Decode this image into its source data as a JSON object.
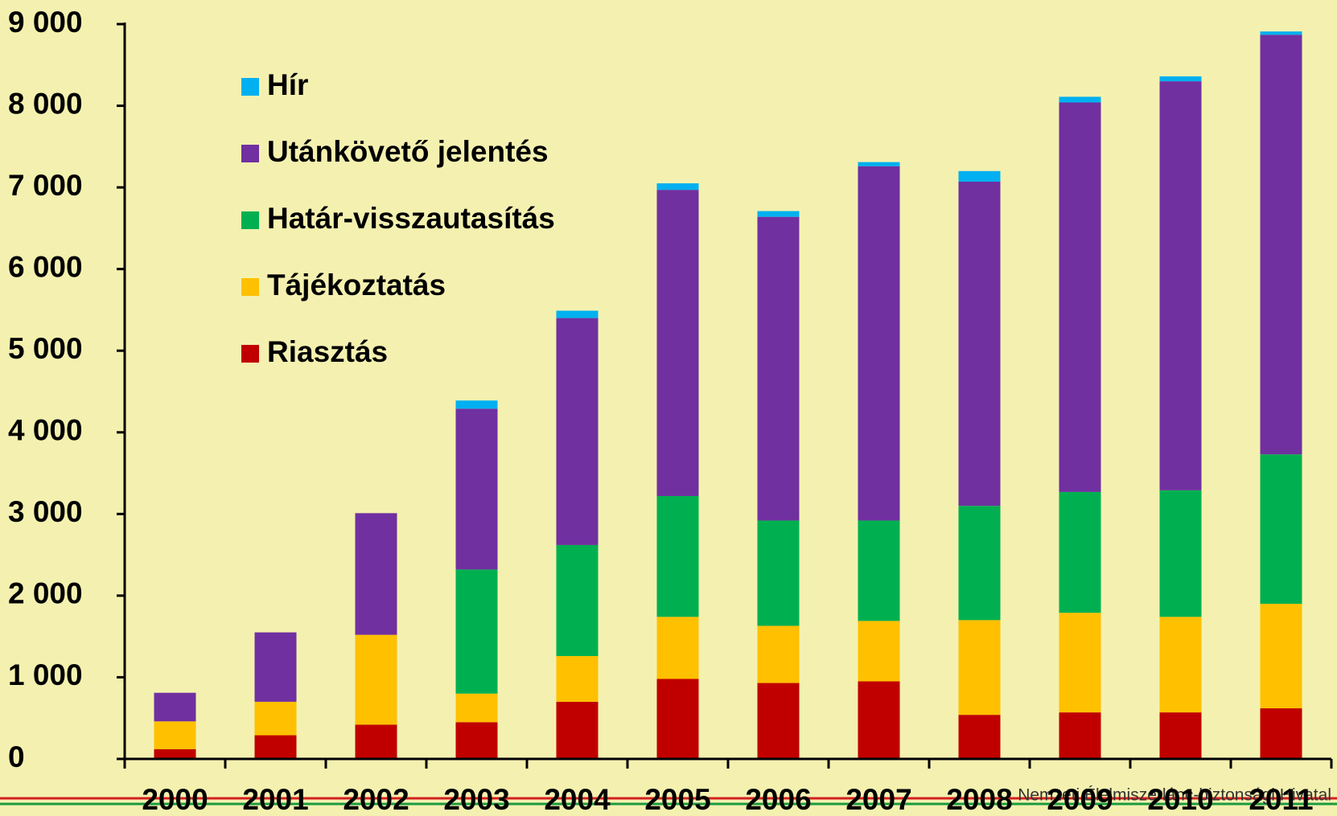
{
  "chart_data": {
    "type": "stacked-bar",
    "categories": [
      "2000",
      "2001",
      "2002",
      "2003",
      "2004",
      "2005",
      "2006",
      "2007",
      "2008",
      "2009",
      "2010",
      "2011"
    ],
    "series": [
      {
        "name": "Riasztás",
        "color": "#c00000",
        "values": [
          120,
          290,
          420,
          450,
          700,
          980,
          930,
          950,
          540,
          570,
          570,
          620
        ]
      },
      {
        "name": "Tájékoztatás",
        "color": "#ffc000",
        "values": [
          340,
          410,
          1100,
          350,
          560,
          760,
          700,
          740,
          1160,
          1220,
          1170,
          1280
        ]
      },
      {
        "name": "Határ-visszautasítás",
        "color": "#00b050",
        "values": [
          0,
          0,
          0,
          1520,
          1360,
          1480,
          1290,
          1230,
          1400,
          1480,
          1550,
          1830
        ]
      },
      {
        "name": "Utánkövető jelentés",
        "color": "#7030a0",
        "values": [
          350,
          850,
          1490,
          1970,
          2780,
          3750,
          3720,
          4340,
          3970,
          4770,
          5010,
          5140
        ]
      },
      {
        "name": "Hír",
        "color": "#00b0f0",
        "values": [
          0,
          0,
          0,
          100,
          90,
          80,
          70,
          50,
          130,
          70,
          60,
          40
        ]
      }
    ],
    "ylim": [
      0,
      9000
    ],
    "yticks": [
      0,
      {
        "value": 1000,
        "label": "1 000"
      },
      {
        "value": 2000,
        "label": "2 000"
      },
      {
        "value": 3000,
        "label": "3 000"
      },
      {
        "value": 4000,
        "label": "4 000"
      },
      {
        "value": 5000,
        "label": "5 000"
      },
      {
        "value": 6000,
        "label": "6 000"
      },
      {
        "value": 7000,
        "label": "7 000"
      },
      {
        "value": 8000,
        "label": "8 000"
      },
      {
        "value": 9000,
        "label": "9 000"
      }
    ],
    "footer": "Nemzeti Élelmiszerlánc-biztonsági Hivatal"
  }
}
